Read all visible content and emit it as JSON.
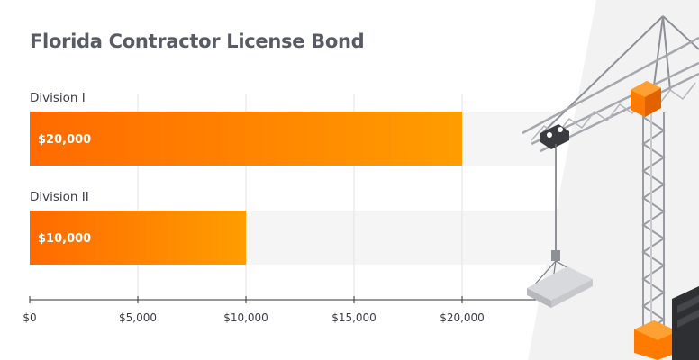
{
  "chart_data": {
    "type": "bar",
    "orientation": "horizontal",
    "title": "Florida Contractor License Bond",
    "categories": [
      "Division I",
      "Division II"
    ],
    "values": [
      20000,
      10000
    ],
    "data_labels": [
      "$20,000",
      "$10,000"
    ],
    "xlim": [
      0,
      20000
    ],
    "xticks": [
      0,
      5000,
      10000,
      15000,
      20000
    ],
    "xtick_labels": [
      "$0",
      "$5,000",
      "$10,000",
      "$15,000",
      "$20,000"
    ],
    "xlabel": "",
    "ylabel": "",
    "grid": true,
    "legend": "none",
    "colors": {
      "bar_start": "#ff6a00",
      "bar_end": "#ff9d00",
      "track": "#f5f5f5",
      "axis": "#333333",
      "grid": "#e3e3e3",
      "title": "#595b64"
    }
  },
  "decoration": {
    "icon": "tower-crane-illustration"
  }
}
